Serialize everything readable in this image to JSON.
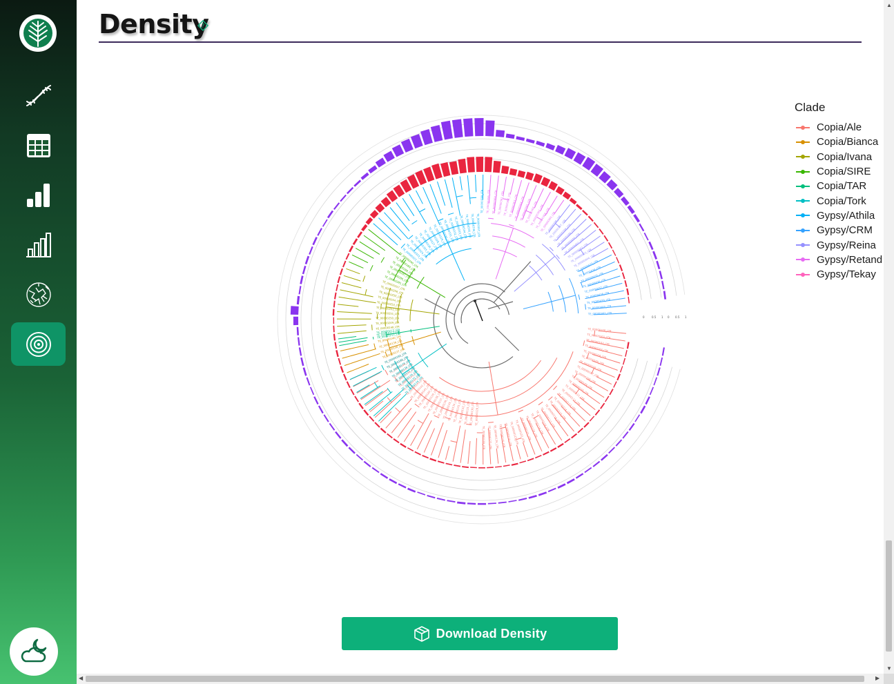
{
  "page": {
    "title": "Density"
  },
  "sidebar": {
    "items": [
      {
        "name": "dna-icon"
      },
      {
        "name": "table-icon"
      },
      {
        "name": "bar-chart-icon"
      },
      {
        "name": "bar-chart-outline-icon"
      },
      {
        "name": "tree-circle-icon"
      },
      {
        "name": "radial-icon",
        "active": true
      }
    ]
  },
  "legend": {
    "title": "Clade",
    "items": [
      {
        "label": "Copia/Ale",
        "color": "#f8766d"
      },
      {
        "label": "Copia/Bianca",
        "color": "#d89000"
      },
      {
        "label": "Copia/Ivana",
        "color": "#a3a500"
      },
      {
        "label": "Copia/SIRE",
        "color": "#39b600"
      },
      {
        "label": "Copia/TAR",
        "color": "#00bf7d"
      },
      {
        "label": "Copia/Tork",
        "color": "#00bfc4"
      },
      {
        "label": "Gypsy/Athila",
        "color": "#00b0f6"
      },
      {
        "label": "Gypsy/CRM",
        "color": "#35a2ff"
      },
      {
        "label": "Gypsy/Reina",
        "color": "#9590ff"
      },
      {
        "label": "Gypsy/Retand",
        "color": "#e76bf3"
      },
      {
        "label": "Gypsy/Tekay",
        "color": "#ff62bc"
      }
    ]
  },
  "density_rings": {
    "inner_color": "#e9253f",
    "outer_color": "#8a35ef",
    "ring_tick_labels": [
      "0",
      "0.5",
      "1",
      "0",
      "0.5",
      "1"
    ]
  },
  "download": {
    "label": "Download Density"
  }
}
